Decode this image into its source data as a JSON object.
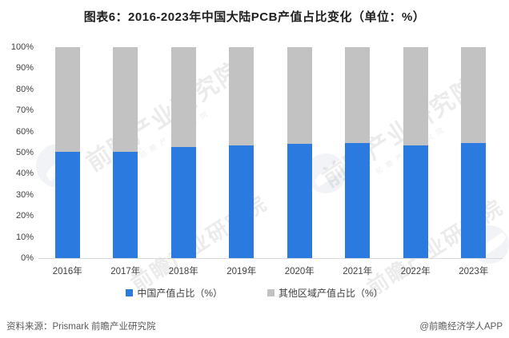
{
  "title": "图表6：2016-2023年中国大陆PCB产值占比变化（单位：%）",
  "colors": {
    "china_blue": "#2a7ae0",
    "other_gray": "#c2c2c2",
    "axis_line": "#d9d9d9",
    "tick_text": "#404040",
    "footer_text": "#595959"
  },
  "chart_data": {
    "type": "bar",
    "stacked": true,
    "title": "图表6：2016-2023年中国大陆PCB产值占比变化（单位：%）",
    "unit": "%",
    "categories": [
      "2016年",
      "2017年",
      "2018年",
      "2019年",
      "2020年",
      "2021年",
      "2022年",
      "2023年"
    ],
    "series": [
      {
        "name": "中国产值占比（%）",
        "color": "#2a7ae0",
        "values": [
          50.5,
          50.5,
          52.5,
          53.5,
          54.0,
          54.5,
          53.5,
          54.5
        ]
      },
      {
        "name": "其他区域产值占比（%）",
        "color": "#c2c2c2",
        "values": [
          49.5,
          49.5,
          47.5,
          46.5,
          46.0,
          45.5,
          46.5,
          45.5
        ]
      }
    ],
    "ylim": [
      0,
      100
    ],
    "y_ticks": [
      "100%",
      "90%",
      "80%",
      "70%",
      "60%",
      "50%",
      "40%",
      "30%",
      "20%",
      "10%",
      "0%"
    ],
    "grid": false,
    "legend_position": "bottom"
  },
  "watermark": {
    "text": "前瞻产业研究院"
  },
  "footer": {
    "source": "资料来源：Prismark 前瞻产业研究院",
    "brand": "@前瞻经济学人APP"
  }
}
